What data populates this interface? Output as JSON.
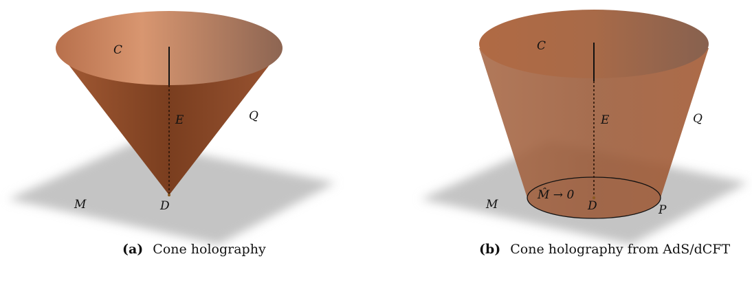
{
  "panel_a": {
    "labels": {
      "C": "C",
      "E": "E",
      "Q": "Q",
      "M": "M",
      "D": "D"
    },
    "caption_tag": "(a)",
    "caption_text": "Cone holography"
  },
  "panel_b": {
    "labels": {
      "C": "C",
      "E": "E",
      "Q": "Q",
      "M": "M",
      "D": "D",
      "P": "P",
      "Mhat": "M̂ → 0"
    },
    "caption_tag": "(b)",
    "caption_text": "Cone holography from AdS/dCFT"
  },
  "colors": {
    "cone": "#a0603e",
    "plane": "#c4c4c4"
  }
}
